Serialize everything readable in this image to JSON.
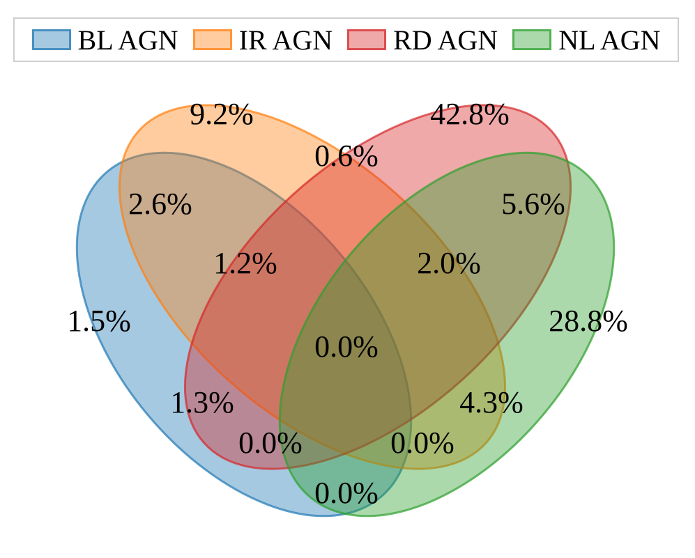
{
  "legend": [
    {
      "key": "bl",
      "label": "BL AGN",
      "fill": "#1f77b4",
      "stroke": "#1f77b4"
    },
    {
      "key": "ir",
      "label": "IR AGN",
      "fill": "#ff7f0e",
      "stroke": "#ff7f0e"
    },
    {
      "key": "rd",
      "label": "RD AGN",
      "fill": "#d62728",
      "stroke": "#d62728"
    },
    {
      "key": "nl",
      "label": "NL AGN",
      "fill": "#2ca02c",
      "stroke": "#2ca02c"
    }
  ],
  "regions": [
    {
      "key": "ir_only",
      "value": "9.2%"
    },
    {
      "key": "rd_only",
      "value": "42.8%"
    },
    {
      "key": "ir_rd",
      "value": "0.6%"
    },
    {
      "key": "bl_ir",
      "value": "2.6%"
    },
    {
      "key": "rd_nl",
      "value": "5.6%"
    },
    {
      "key": "bl_ir_rd",
      "value": "1.2%"
    },
    {
      "key": "ir_rd_nl",
      "value": "2.0%"
    },
    {
      "key": "bl_only",
      "value": "1.5%"
    },
    {
      "key": "nl_only",
      "value": "28.8%"
    },
    {
      "key": "all_four",
      "value": "0.0%"
    },
    {
      "key": "bl_rd",
      "value": "1.3%"
    },
    {
      "key": "ir_nl",
      "value": "4.3%"
    },
    {
      "key": "bl_rd_nl",
      "value": "0.0%"
    },
    {
      "key": "bl_ir_nl",
      "value": "0.0%"
    },
    {
      "key": "bl_nl",
      "value": "0.0%"
    }
  ]
}
